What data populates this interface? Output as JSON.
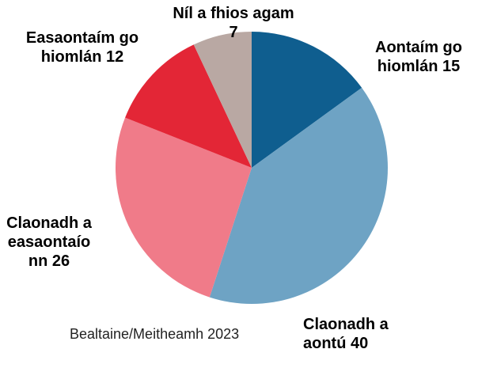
{
  "chart_data": {
    "type": "pie",
    "categories": [
      "Aontaím go hiomlán",
      "Claonadh a aontú",
      "Claonadh a easaontaíonn",
      "Easaontaím go hiomlán",
      "Níl a fhios agam"
    ],
    "values": [
      15,
      40,
      26,
      12,
      7
    ],
    "colors": [
      "#0f5e8f",
      "#6ea3c4",
      "#f07b89",
      "#e32636",
      "#b9a8a3"
    ],
    "note": "Bealtaine/Meitheamh 2023"
  }
}
